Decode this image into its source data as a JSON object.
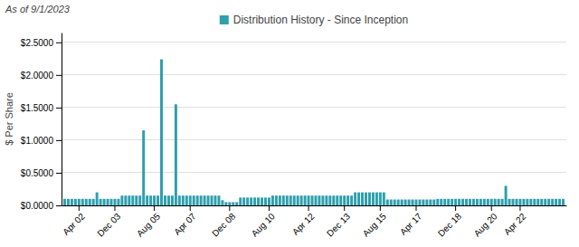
{
  "chart_data": {
    "type": "bar",
    "subtitle": "As of 9/1/2023",
    "ylabel": "$ Per Share",
    "categories": [
      null,
      null,
      null,
      null,
      "Apr 02",
      null,
      null,
      null,
      null,
      null,
      null,
      null,
      null,
      null,
      "Dec 03",
      null,
      null,
      null,
      null,
      null,
      null,
      null,
      null,
      null,
      null,
      "Aug 05",
      null,
      null,
      null,
      null,
      null,
      null,
      null,
      null,
      null,
      "Apr 07",
      null,
      null,
      null,
      null,
      null,
      null,
      null,
      null,
      null,
      null,
      "Dec 08",
      null,
      null,
      null,
      null,
      null,
      null,
      null,
      null,
      null,
      null,
      "Aug 10",
      null,
      null,
      null,
      null,
      null,
      null,
      null,
      null,
      null,
      null,
      "Apr 12",
      null,
      null,
      null,
      null,
      null,
      null,
      null,
      null,
      null,
      "Dec 13",
      null,
      null,
      null,
      null,
      null,
      null,
      null,
      null,
      null,
      "Aug 15",
      null,
      null,
      null,
      null,
      null,
      null,
      null,
      null,
      null,
      "Apr 17",
      null,
      null,
      null,
      null,
      null,
      null,
      null,
      null,
      null,
      null,
      "Dec 18",
      null,
      null,
      null,
      null,
      null,
      null,
      null,
      null,
      null,
      "Aug 20",
      null,
      null,
      null,
      null,
      null,
      null,
      null,
      "Apr 22",
      null,
      null,
      null,
      null,
      null,
      null,
      null,
      null,
      null,
      null,
      null,
      null
    ],
    "series": [
      {
        "name": "Distribution History - Since Inception",
        "color": "#2e9fad",
        "values": [
          0.1,
          0.1,
          0.1,
          0.1,
          0.1,
          0.1,
          0.1,
          0.1,
          0.1,
          0.2,
          0.1,
          0.1,
          0.1,
          0.1,
          0.1,
          0.1,
          0.15,
          0.15,
          0.15,
          0.15,
          0.15,
          0.15,
          1.15,
          0.15,
          0.15,
          0.15,
          0.15,
          2.24,
          0.15,
          0.15,
          0.15,
          1.55,
          0.15,
          0.15,
          0.15,
          0.15,
          0.15,
          0.15,
          0.15,
          0.15,
          0.15,
          0.15,
          0.15,
          0.15,
          0.08,
          0.05,
          0.05,
          0.05,
          0.05,
          0.12,
          0.12,
          0.12,
          0.12,
          0.12,
          0.12,
          0.12,
          0.12,
          0.12,
          0.15,
          0.15,
          0.15,
          0.15,
          0.15,
          0.15,
          0.15,
          0.15,
          0.15,
          0.15,
          0.15,
          0.15,
          0.15,
          0.15,
          0.15,
          0.15,
          0.15,
          0.15,
          0.15,
          0.15,
          0.15,
          0.15,
          0.15,
          0.2,
          0.2,
          0.2,
          0.2,
          0.2,
          0.2,
          0.2,
          0.2,
          0.2,
          0.09,
          0.09,
          0.09,
          0.09,
          0.09,
          0.09,
          0.09,
          0.09,
          0.09,
          0.09,
          0.09,
          0.09,
          0.09,
          0.09,
          0.1,
          0.1,
          0.1,
          0.1,
          0.1,
          0.1,
          0.1,
          0.1,
          0.1,
          0.1,
          0.1,
          0.1,
          0.1,
          0.1,
          0.1,
          0.1,
          0.1,
          0.1,
          0.1,
          0.3,
          0.1,
          0.1,
          0.1,
          0.1,
          0.1,
          0.1,
          0.1,
          0.1,
          0.1,
          0.1,
          0.1,
          0.1,
          0.1,
          0.1,
          0.1,
          0.1
        ]
      }
    ],
    "ylim": [
      0,
      2.65
    ],
    "yticks": [
      {
        "value": 0.0,
        "label": "$0.0000"
      },
      {
        "value": 0.5,
        "label": "$0.5000"
      },
      {
        "value": 1.0,
        "label": "$1.0000"
      },
      {
        "value": 1.5,
        "label": "$1.5000"
      },
      {
        "value": 2.0,
        "label": "$2.0000"
      },
      {
        "value": 2.5,
        "label": "$2.5000"
      }
    ],
    "grid": true,
    "legend": "top"
  }
}
